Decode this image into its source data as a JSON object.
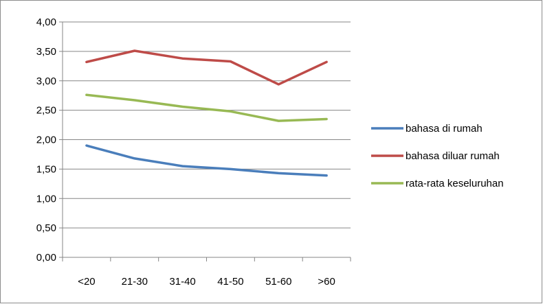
{
  "chart_data": {
    "type": "line",
    "categories": [
      "<20",
      "21-30",
      "31-40",
      "41-50",
      "51-60",
      ">60"
    ],
    "ylim": [
      0,
      4
    ],
    "ytick_values": [
      0,
      0.5,
      1,
      1.5,
      2,
      2.5,
      3,
      3.5,
      4
    ],
    "ytick_labels": [
      "0,00",
      "0,50",
      "1,00",
      "1,50",
      "2,00",
      "2,50",
      "3,00",
      "3,50",
      "4,00"
    ],
    "grid": true,
    "legend_position": "right",
    "title": "",
    "xlabel": "",
    "ylabel": "",
    "series": [
      {
        "name": "bahasa di rumah",
        "color": "#4a7ebb",
        "values": [
          1.9,
          1.68,
          1.55,
          1.5,
          1.43,
          1.39
        ]
      },
      {
        "name": "bahasa diluar rumah",
        "color": "#be4b48",
        "values": [
          3.32,
          3.51,
          3.38,
          3.33,
          2.94,
          3.32
        ]
      },
      {
        "name": "rata-rata keseluruhan",
        "color": "#98b954",
        "values": [
          2.76,
          2.67,
          2.56,
          2.48,
          2.32,
          2.35
        ]
      }
    ]
  }
}
